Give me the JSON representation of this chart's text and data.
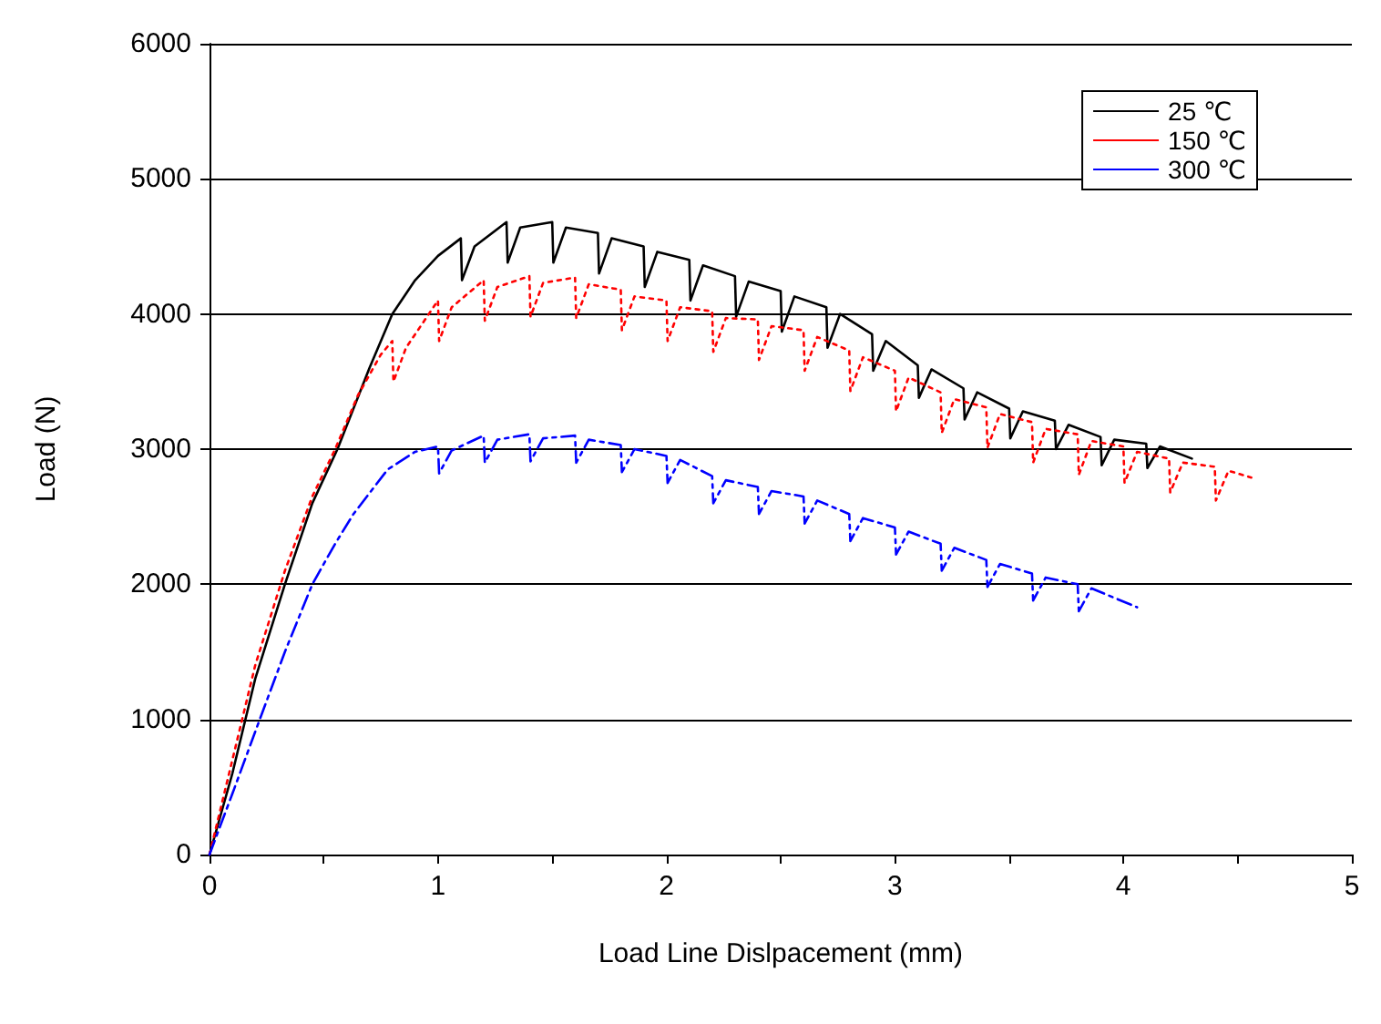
{
  "chart_data": {
    "type": "line",
    "xlabel": "Load Line Dislpacement (mm)",
    "ylabel": "Load (N)",
    "xlim": [
      0,
      5
    ],
    "xticks": [
      0,
      1,
      2,
      3,
      4,
      5
    ],
    "ylim": [
      0,
      6000
    ],
    "yticks": [
      0,
      1000,
      2000,
      3000,
      4000,
      5000,
      6000
    ],
    "grid": "y",
    "legend": "top right",
    "marker": "none",
    "series": [
      {
        "name": "25 ℃",
        "color": "#000000",
        "line_style": "solid",
        "x": [
          0,
          0.1,
          0.2,
          0.33,
          0.45,
          0.56,
          0.7,
          0.8,
          0.9,
          1.0,
          1.1,
          1.105,
          1.16,
          1.3,
          1.305,
          1.36,
          1.5,
          1.505,
          1.56,
          1.7,
          1.705,
          1.76,
          1.9,
          1.905,
          1.96,
          2.1,
          2.105,
          2.16,
          2.3,
          2.305,
          2.36,
          2.5,
          2.505,
          2.56,
          2.7,
          2.705,
          2.76,
          2.9,
          2.905,
          2.96,
          3.1,
          3.105,
          3.16,
          3.3,
          3.305,
          3.36,
          3.5,
          3.505,
          3.56,
          3.7,
          3.705,
          3.76,
          3.9,
          3.905,
          3.96,
          4.1,
          4.105,
          4.16,
          4.3
        ],
        "values": [
          0,
          600,
          1300,
          2000,
          2600,
          3000,
          3600,
          4000,
          4250,
          4430,
          4560,
          4250,
          4500,
          4680,
          4380,
          4640,
          4680,
          4380,
          4640,
          4600,
          4300,
          4560,
          4500,
          4200,
          4460,
          4400,
          4100,
          4360,
          4280,
          3980,
          4240,
          4170,
          3870,
          4130,
          4050,
          3750,
          4000,
          3850,
          3580,
          3800,
          3620,
          3380,
          3590,
          3450,
          3220,
          3420,
          3300,
          3080,
          3280,
          3210,
          3000,
          3180,
          3090,
          2880,
          3070,
          3040,
          2860,
          3020,
          2930
        ]
      },
      {
        "name": "150 ℃",
        "color": "#ff0000",
        "line_style": "dotted",
        "x": [
          0,
          0.1,
          0.2,
          0.33,
          0.45,
          0.55,
          0.65,
          0.75,
          0.8,
          0.805,
          0.86,
          1.0,
          1.005,
          1.06,
          1.2,
          1.205,
          1.26,
          1.4,
          1.405,
          1.46,
          1.6,
          1.605,
          1.66,
          1.8,
          1.805,
          1.86,
          2.0,
          2.005,
          2.06,
          2.2,
          2.205,
          2.26,
          2.4,
          2.405,
          2.46,
          2.6,
          2.605,
          2.66,
          2.8,
          2.805,
          2.86,
          3.0,
          3.005,
          3.06,
          3.2,
          3.205,
          3.26,
          3.4,
          3.405,
          3.46,
          3.6,
          3.605,
          3.66,
          3.8,
          3.805,
          3.86,
          4.0,
          4.005,
          4.06,
          4.2,
          4.205,
          4.26,
          4.4,
          4.405,
          4.46,
          4.56
        ],
        "values": [
          0,
          700,
          1400,
          2100,
          2650,
          3000,
          3400,
          3700,
          3800,
          3500,
          3750,
          4100,
          3800,
          4050,
          4250,
          3950,
          4200,
          4280,
          3980,
          4230,
          4270,
          3970,
          4220,
          4180,
          3880,
          4130,
          4100,
          3800,
          4050,
          4020,
          3720,
          3970,
          3960,
          3660,
          3910,
          3880,
          3580,
          3830,
          3730,
          3430,
          3680,
          3580,
          3280,
          3530,
          3420,
          3120,
          3370,
          3310,
          3010,
          3260,
          3200,
          2900,
          3150,
          3110,
          2810,
          3060,
          3020,
          2750,
          2980,
          2930,
          2680,
          2900,
          2870,
          2620,
          2840,
          2790
        ]
      },
      {
        "name": "300 ℃",
        "color": "#0000ff",
        "line_style": "dashdot",
        "x": [
          0,
          0.1,
          0.22,
          0.33,
          0.45,
          0.55,
          0.63,
          0.78,
          0.9,
          1.0,
          1.005,
          1.06,
          1.2,
          1.205,
          1.26,
          1.4,
          1.405,
          1.46,
          1.6,
          1.605,
          1.66,
          1.8,
          1.805,
          1.86,
          2.0,
          2.005,
          2.06,
          2.2,
          2.205,
          2.26,
          2.4,
          2.405,
          2.46,
          2.6,
          2.605,
          2.66,
          2.8,
          2.805,
          2.86,
          3.0,
          3.005,
          3.06,
          3.2,
          3.205,
          3.26,
          3.4,
          3.405,
          3.46,
          3.6,
          3.605,
          3.66,
          3.8,
          3.805,
          3.86,
          4.06
        ],
        "values": [
          0,
          450,
          1000,
          1500,
          2000,
          2300,
          2520,
          2850,
          2980,
          3020,
          2820,
          2990,
          3100,
          2900,
          3070,
          3110,
          2910,
          3080,
          3100,
          2900,
          3070,
          3030,
          2830,
          3000,
          2950,
          2750,
          2920,
          2800,
          2600,
          2770,
          2720,
          2520,
          2690,
          2650,
          2450,
          2620,
          2520,
          2320,
          2490,
          2420,
          2220,
          2390,
          2300,
          2100,
          2270,
          2180,
          1980,
          2150,
          2080,
          1880,
          2050,
          2000,
          1800,
          1970,
          1830
        ]
      }
    ]
  }
}
